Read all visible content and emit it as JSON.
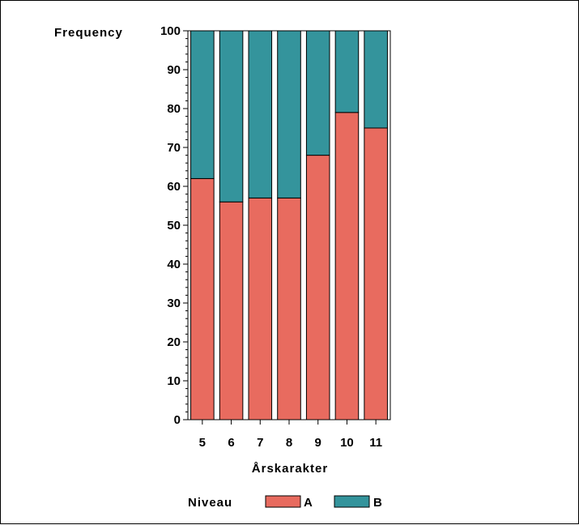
{
  "chart_data": {
    "type": "bar",
    "stacked": true,
    "categories": [
      "5",
      "6",
      "7",
      "8",
      "9",
      "10",
      "11"
    ],
    "series": [
      {
        "name": "A",
        "values": [
          62,
          56,
          57,
          57,
          68,
          79,
          75
        ],
        "color": "#e86b5f"
      },
      {
        "name": "B",
        "values": [
          38,
          44,
          43,
          43,
          32,
          21,
          25
        ],
        "color": "#34949c"
      }
    ],
    "ylabel": "Frequency",
    "xlabel": "Årskarakter",
    "ylim": [
      0,
      100
    ],
    "yticks": [
      "0",
      "10",
      "20",
      "30",
      "40",
      "50",
      "60",
      "70",
      "80",
      "90",
      "100"
    ],
    "minor_ticks_per_major": 5,
    "grid": false,
    "legend": {
      "title": "Niveau",
      "position": "bottom",
      "items": [
        "A",
        "B"
      ]
    }
  }
}
